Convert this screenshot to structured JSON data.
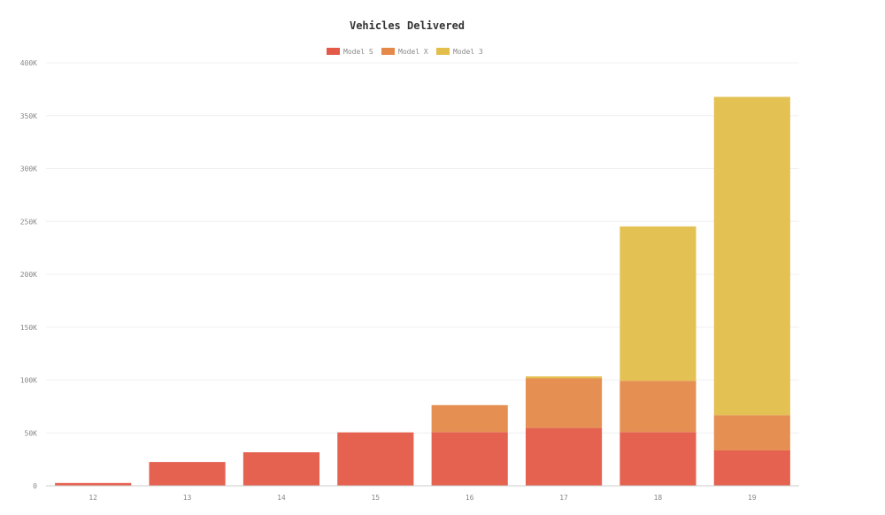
{
  "chart_data": {
    "type": "bar",
    "stacked": true,
    "title": "Vehicles Delivered",
    "xlabel": "",
    "ylabel": "",
    "categories": [
      "12",
      "13",
      "14",
      "15",
      "16",
      "17",
      "18",
      "19"
    ],
    "series": [
      {
        "name": "Model S",
        "color": "#e45a48",
        "values": [
          2650,
          22500,
          31700,
          50500,
          50800,
          54700,
          50800,
          33500
        ]
      },
      {
        "name": "Model X",
        "color": "#e5894a",
        "values": [
          0,
          0,
          0,
          0,
          25500,
          47000,
          48500,
          33300
        ]
      },
      {
        "name": "Model 3",
        "color": "#e2bf4a",
        "values": [
          0,
          0,
          0,
          0,
          0,
          1800,
          146000,
          301000
        ]
      }
    ],
    "ylim": [
      0,
      400000
    ],
    "yticks": [
      {
        "value": 0,
        "label": "0"
      },
      {
        "value": 50000,
        "label": "50K"
      },
      {
        "value": 100000,
        "label": "100K"
      },
      {
        "value": 150000,
        "label": "150K"
      },
      {
        "value": 200000,
        "label": "200K"
      },
      {
        "value": 250000,
        "label": "250K"
      },
      {
        "value": 300000,
        "label": "300K"
      },
      {
        "value": 350000,
        "label": "350K"
      },
      {
        "value": 400000,
        "label": "400K"
      }
    ],
    "grid": true,
    "legend_position": "top-center"
  }
}
